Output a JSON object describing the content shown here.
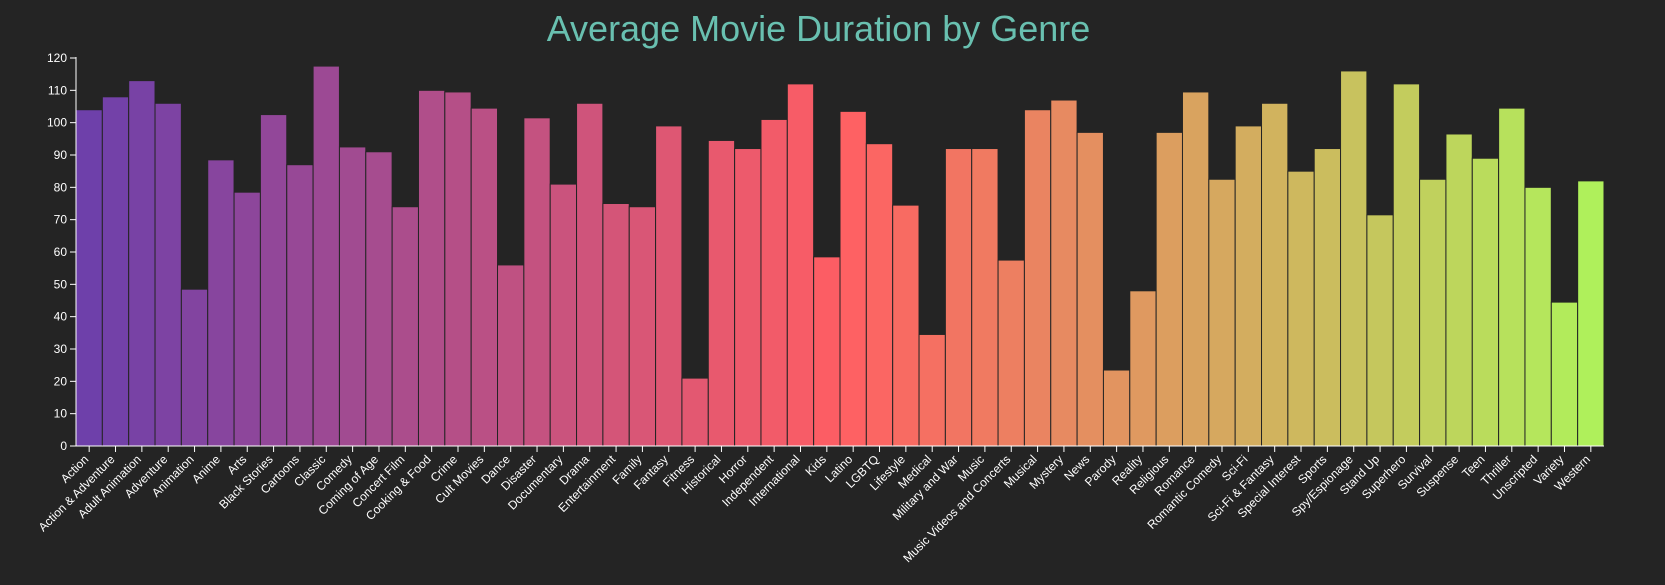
{
  "chart_data": {
    "type": "bar",
    "title": "Average Movie Duration by Genre",
    "xlabel": "",
    "ylabel": "",
    "ylim": [
      0,
      120
    ],
    "yticks": [
      0,
      10,
      20,
      30,
      40,
      50,
      60,
      70,
      80,
      90,
      100,
      110,
      120
    ],
    "grid": false,
    "colors": {
      "start": "#6e40aa",
      "mid": "#ff5e63",
      "end": "#aff05b"
    },
    "categories": [
      "Action",
      "Action & Adventure",
      "Adult Animation",
      "Adventure",
      "Animation",
      "Anime",
      "Arts",
      "Black Stories",
      "Cartoons",
      "Classic",
      "Comedy",
      "Coming of Age",
      "Concert Film",
      "Cooking & Food",
      "Crime",
      "Cult Movies",
      "Dance",
      "Disaster",
      "Documentary",
      "Drama",
      "Entertainment",
      "Family",
      "Fantasy",
      "Fitness",
      "Historical",
      "Horror",
      "Independent",
      "International",
      "Kids",
      "Latino",
      "LGBTQ",
      "Lifestyle",
      "Medical",
      "Military and War",
      "Music",
      "Music Videos and Concerts",
      "Musical",
      "Mystery",
      "News",
      "Parody",
      "Reality",
      "Religious",
      "Romance",
      "Romantic Comedy",
      "Sci-Fi",
      "Sci-Fi & Fantasy",
      "Special Interest",
      "Sports",
      "Spy/Espionage",
      "Stand Up",
      "Superhero",
      "Survival",
      "Suspense",
      "Teen",
      "Thriller",
      "Unscripted",
      "Variety",
      "Western"
    ],
    "values": [
      104,
      108,
      113,
      106,
      48.5,
      88.5,
      78.5,
      102.5,
      87,
      117.5,
      92.5,
      91,
      74,
      110,
      109.5,
      104.5,
      56,
      101.5,
      81,
      106,
      75,
      74,
      99,
      21,
      94.5,
      92,
      101,
      112,
      58.5,
      103.5,
      93.5,
      74.5,
      34.5,
      92,
      92,
      57.5,
      104,
      107,
      97,
      23.5,
      48,
      97,
      109.5,
      82.5,
      99,
      106,
      85,
      92,
      116,
      71.5,
      112,
      82.5,
      96.5,
      89,
      104.5,
      80,
      44.5,
      82
    ]
  }
}
